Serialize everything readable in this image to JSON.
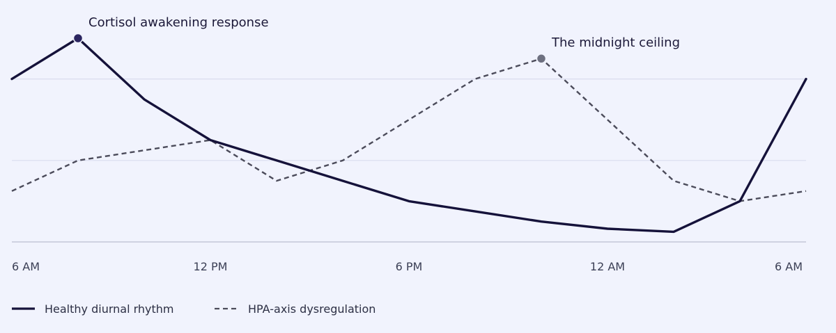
{
  "chart_data": {
    "type": "line",
    "x_ticks": [
      "6 AM",
      "12 PM",
      "6 PM",
      "12 AM",
      "6 AM"
    ],
    "x_hours": [
      0,
      2,
      4,
      6,
      8,
      10,
      12,
      14,
      16,
      18,
      20,
      22,
      24
    ],
    "ylim": [
      0,
      100
    ],
    "grid_y": [
      40,
      80
    ],
    "grid": true,
    "legend_position": "bottom-left",
    "series": [
      {
        "name": "Healthy diurnal rhythm",
        "style": "solid",
        "color": "#15123a",
        "values": [
          80,
          100,
          70,
          50,
          40,
          30,
          20,
          15,
          10,
          6.5,
          5,
          20,
          80
        ]
      },
      {
        "name": "HPA-axis dysregulation",
        "style": "dashed",
        "color": "#4b4b5a",
        "values": [
          25,
          40,
          45,
          50,
          30,
          40,
          60,
          80,
          90,
          60,
          30,
          20,
          25
        ]
      }
    ],
    "annotations": [
      {
        "text": "Cortisol awakening response",
        "series": 0,
        "point": 1,
        "marker_color": "#2b2560"
      },
      {
        "text": "The midnight ceiling",
        "series": 1,
        "point": 8,
        "marker_color": "#6e7080"
      }
    ]
  }
}
